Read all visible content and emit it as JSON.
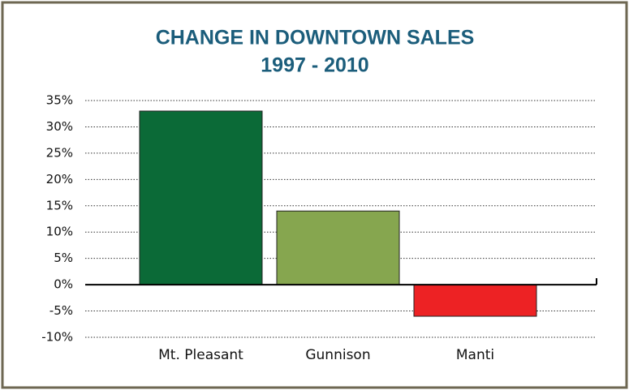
{
  "chart_data": {
    "type": "bar",
    "title": "CHANGE IN DOWNTOWN SALES",
    "subtitle": "1997 - 2010",
    "categories": [
      "Mt. Pleasant",
      "Gunnison",
      "Manti"
    ],
    "values": [
      33,
      14,
      -6
    ],
    "colors": [
      "#0b6a37",
      "#86a64f",
      "#ed2224"
    ],
    "ylim": [
      -10,
      35
    ],
    "yticks": [
      {
        "value": -10,
        "label": "-10%"
      },
      {
        "value": -5,
        "label": "-5%"
      },
      {
        "value": 0,
        "label": "0%"
      },
      {
        "value": 5,
        "label": "5%"
      },
      {
        "value": 10,
        "label": "10%"
      },
      {
        "value": 15,
        "label": "15%"
      },
      {
        "value": 20,
        "label": "20%"
      },
      {
        "value": 25,
        "label": "25%"
      },
      {
        "value": 30,
        "label": "30%"
      },
      {
        "value": 35,
        "label": "35%"
      }
    ],
    "grid": true
  }
}
